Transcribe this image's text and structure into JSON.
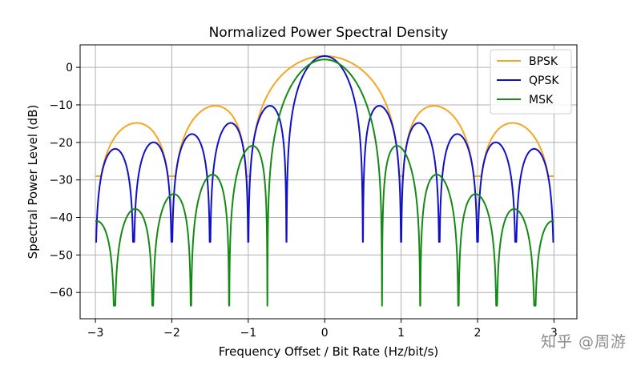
{
  "chart_data": {
    "type": "line",
    "title": "Normalized Power Spectral Density",
    "xlabel": "Frequency Offset / Bit Rate (Hz/bit/s)",
    "ylabel": "Spectral Power Level (dB)",
    "xlim": [
      -3.2,
      3.3
    ],
    "ylim": [
      -67,
      6
    ],
    "xticks": [
      -3,
      -2,
      -1,
      0,
      1,
      2,
      3
    ],
    "yticks": [
      0,
      -10,
      -20,
      -30,
      -40,
      -50,
      -60
    ],
    "xtick_labels": [
      "−3",
      "−2",
      "−1",
      "0",
      "1",
      "2",
      "3"
    ],
    "ytick_labels": [
      "0",
      "−10",
      "−20",
      "−30",
      "−40",
      "−50",
      "−60"
    ],
    "grid": true,
    "legend_position": "top-right",
    "series": [
      {
        "name": "BPSK",
        "color": "#f5a623",
        "formula": "10*log10(2*sinc^2(f))",
        "x_range": [
          -3,
          3
        ],
        "peak_db": 3.0,
        "lobe_peaks_db": [
          -10.5,
          -15.0
        ]
      },
      {
        "name": "QPSK",
        "color": "#1010c8",
        "formula": "10*log10(2*sinc^2(2f))",
        "x_range": [
          -3,
          3
        ],
        "peak_db": 3.0,
        "lobe_peaks_db": [
          -10.5,
          -15.0,
          -18.0,
          -20.0,
          -22.0
        ]
      },
      {
        "name": "MSK",
        "color": "#138a13",
        "formula": "10*log10(16/pi^2 * (cos(2*pi*f)/(1-16f^2))^2)",
        "x_range": [
          -3,
          3
        ],
        "peak_db": 2.1,
        "lobe_peaks_db": [
          -21.0,
          -28.5,
          -34.0,
          -38.0,
          -41.0
        ]
      }
    ]
  },
  "watermark": {
    "text": "知乎 @周游"
  }
}
